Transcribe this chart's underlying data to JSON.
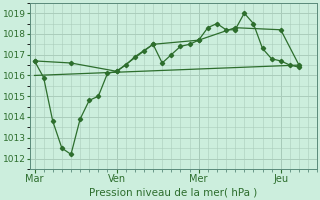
{
  "bg_color": "#cceedd",
  "grid_color": "#aaccbb",
  "line_color": "#2d6e2d",
  "marker_color": "#2d6e2d",
  "xlabel": "Pression niveau de la mer( hPa )",
  "ylim": [
    1011.5,
    1019.5
  ],
  "yticks": [
    1012,
    1013,
    1014,
    1015,
    1016,
    1017,
    1018,
    1019
  ],
  "day_labels": [
    "Mar",
    "Ven",
    "Mer",
    "Jeu"
  ],
  "day_positions": [
    0,
    9,
    18,
    27
  ],
  "vline_positions": [
    0,
    9,
    18,
    27
  ],
  "xlim": [
    -0.5,
    31
  ],
  "series0": {
    "x": [
      0,
      1,
      2,
      3,
      4,
      5,
      6,
      7,
      8,
      9,
      10,
      11,
      12,
      13,
      14,
      15,
      16,
      17,
      18,
      19,
      20,
      21,
      22,
      23,
      24,
      25,
      26,
      27,
      28,
      29
    ],
    "y": [
      1016.7,
      1015.9,
      1013.8,
      1012.5,
      1012.2,
      1013.9,
      1014.8,
      1015.0,
      1016.1,
      1016.2,
      1016.5,
      1016.9,
      1017.2,
      1017.5,
      1016.6,
      1017.0,
      1017.4,
      1017.5,
      1017.7,
      1018.3,
      1018.5,
      1018.2,
      1018.2,
      1019.0,
      1018.5,
      1017.3,
      1016.8,
      1016.7,
      1016.5,
      1016.4
    ]
  },
  "series1": {
    "x": [
      0,
      4,
      9,
      13,
      18,
      22,
      27,
      29
    ],
    "y": [
      1016.7,
      1016.6,
      1016.2,
      1017.5,
      1017.7,
      1018.3,
      1018.2,
      1016.5
    ]
  },
  "series2": {
    "x": [
      0,
      29
    ],
    "y": [
      1016.0,
      1016.5
    ]
  }
}
